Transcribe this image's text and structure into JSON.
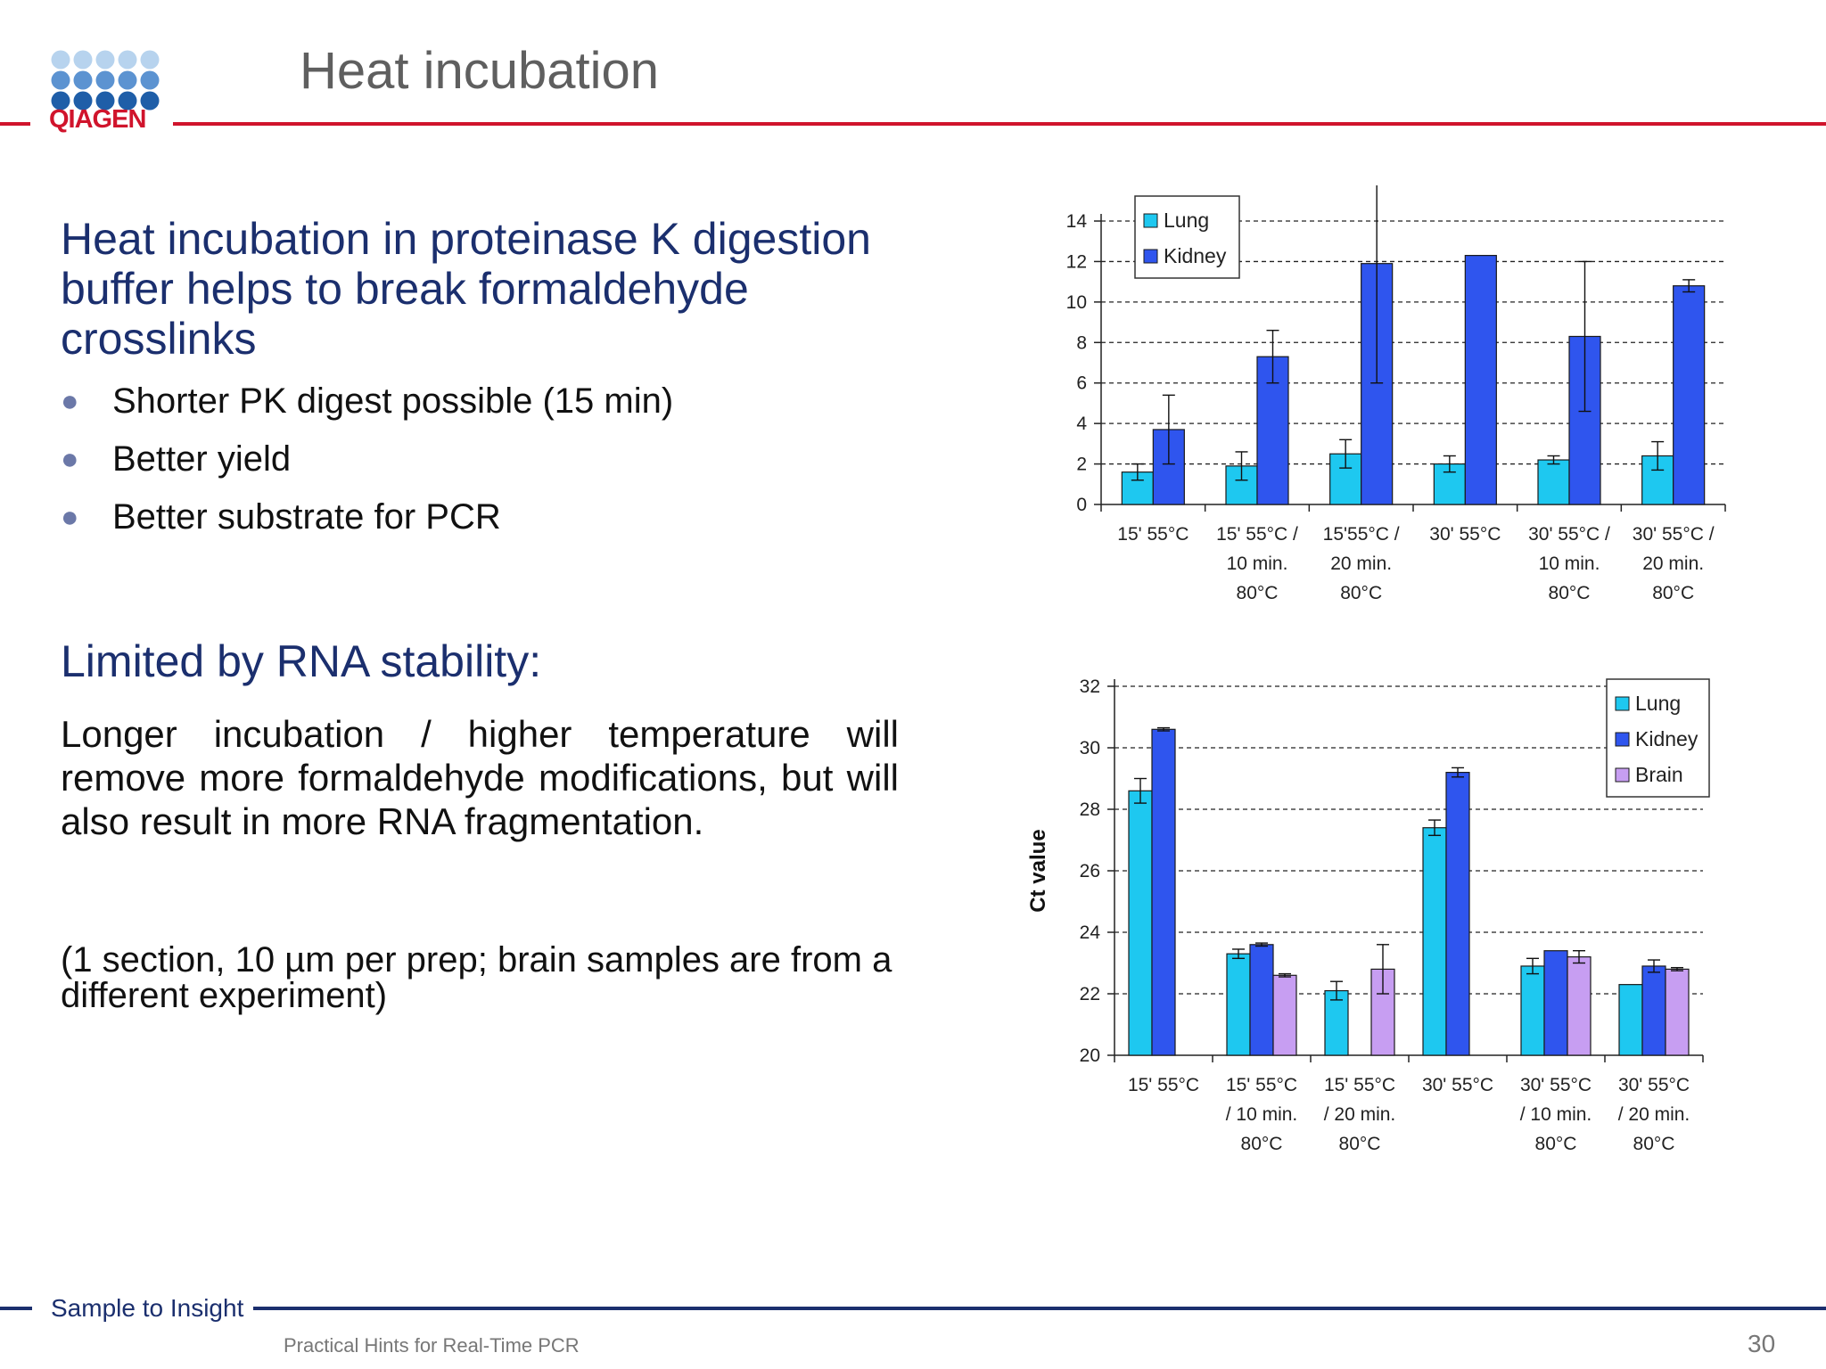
{
  "header": {
    "logo_text": "QIAGEN",
    "title": "Heat incubation",
    "line_color": "#d0142c"
  },
  "content": {
    "main_heading": "Heat incubation in proteinase K digestion buffer helps to break formaldehyde crosslinks",
    "bullets": [
      "Shorter PK digest possible (15 min)",
      "Better yield",
      "Better substrate for PCR"
    ],
    "sub_heading": "Limited by RNA stability:",
    "paragraph": "Longer incubation / higher temperature will remove more formaldehyde modifications, but will also result in more RNA fragmentation.",
    "note": "(1 section, 10 µm per prep; brain samples are from a different experiment)"
  },
  "footer": {
    "tagline": "Sample to Insight",
    "subtitle": "Practical Hints for Real-Time PCR",
    "page_number": "30",
    "line_color": "#1b2f6e"
  },
  "colors": {
    "lung": "#1ec8f0",
    "kidney": "#2f55ee",
    "brain": "#c79ef2",
    "heading": "#1b2f6e"
  },
  "chart_data": [
    {
      "type": "bar",
      "title": "",
      "xlabel": "",
      "ylabel": "",
      "ylim": [
        0,
        14
      ],
      "yticks": [
        0,
        2,
        4,
        6,
        8,
        10,
        12,
        14
      ],
      "grid": true,
      "legend_position": "top-left",
      "categories": [
        [
          "15' 55°C"
        ],
        [
          "15' 55°C /",
          "10 min.",
          "80°C"
        ],
        [
          "15'55°C /",
          "20 min.",
          "80°C"
        ],
        [
          "30' 55°C"
        ],
        [
          "30' 55°C /",
          "10 min.",
          "80°C"
        ],
        [
          "30' 55°C /",
          "20 min.",
          "80°C"
        ]
      ],
      "series": [
        {
          "name": "Lung",
          "color": "#1ec8f0",
          "values": [
            1.6,
            1.9,
            2.5,
            2.0,
            2.2,
            2.4
          ],
          "errors": [
            0.4,
            0.7,
            0.7,
            0.4,
            0.2,
            0.7
          ]
        },
        {
          "name": "Kidney",
          "color": "#2f55ee",
          "values": [
            3.7,
            7.3,
            11.9,
            12.3,
            8.3,
            10.8
          ],
          "errors": [
            1.7,
            1.3,
            5.9,
            0,
            3.7,
            0.3
          ]
        }
      ]
    },
    {
      "type": "bar",
      "title": "",
      "xlabel": "",
      "ylabel": "Ct value",
      "ylim": [
        20,
        32
      ],
      "yticks": [
        20,
        22,
        24,
        26,
        28,
        30,
        32
      ],
      "grid": true,
      "legend_position": "top-right",
      "categories": [
        [
          "15' 55°C"
        ],
        [
          "15' 55°C",
          "/ 10 min.",
          "80°C"
        ],
        [
          "15' 55°C",
          "/ 20 min.",
          "80°C"
        ],
        [
          "30' 55°C"
        ],
        [
          "30' 55°C",
          "/ 10 min.",
          "80°C"
        ],
        [
          "30' 55°C",
          "/ 20 min.",
          "80°C"
        ]
      ],
      "series": [
        {
          "name": "Lung",
          "color": "#1ec8f0",
          "values": [
            28.6,
            23.3,
            22.1,
            27.4,
            22.9,
            22.3
          ],
          "errors": [
            0.4,
            0.15,
            0.3,
            0.25,
            0.25,
            0
          ]
        },
        {
          "name": "Kidney",
          "color": "#2f55ee",
          "values": [
            30.6,
            23.6,
            null,
            29.2,
            23.4,
            22.9
          ],
          "errors": [
            0.05,
            0.05,
            0,
            0.15,
            0,
            0.2
          ]
        },
        {
          "name": "Brain",
          "color": "#c79ef2",
          "values": [
            null,
            22.6,
            22.8,
            null,
            23.2,
            22.8
          ],
          "errors": [
            0,
            0.05,
            0.8,
            0,
            0.2,
            0.05
          ]
        }
      ]
    }
  ]
}
